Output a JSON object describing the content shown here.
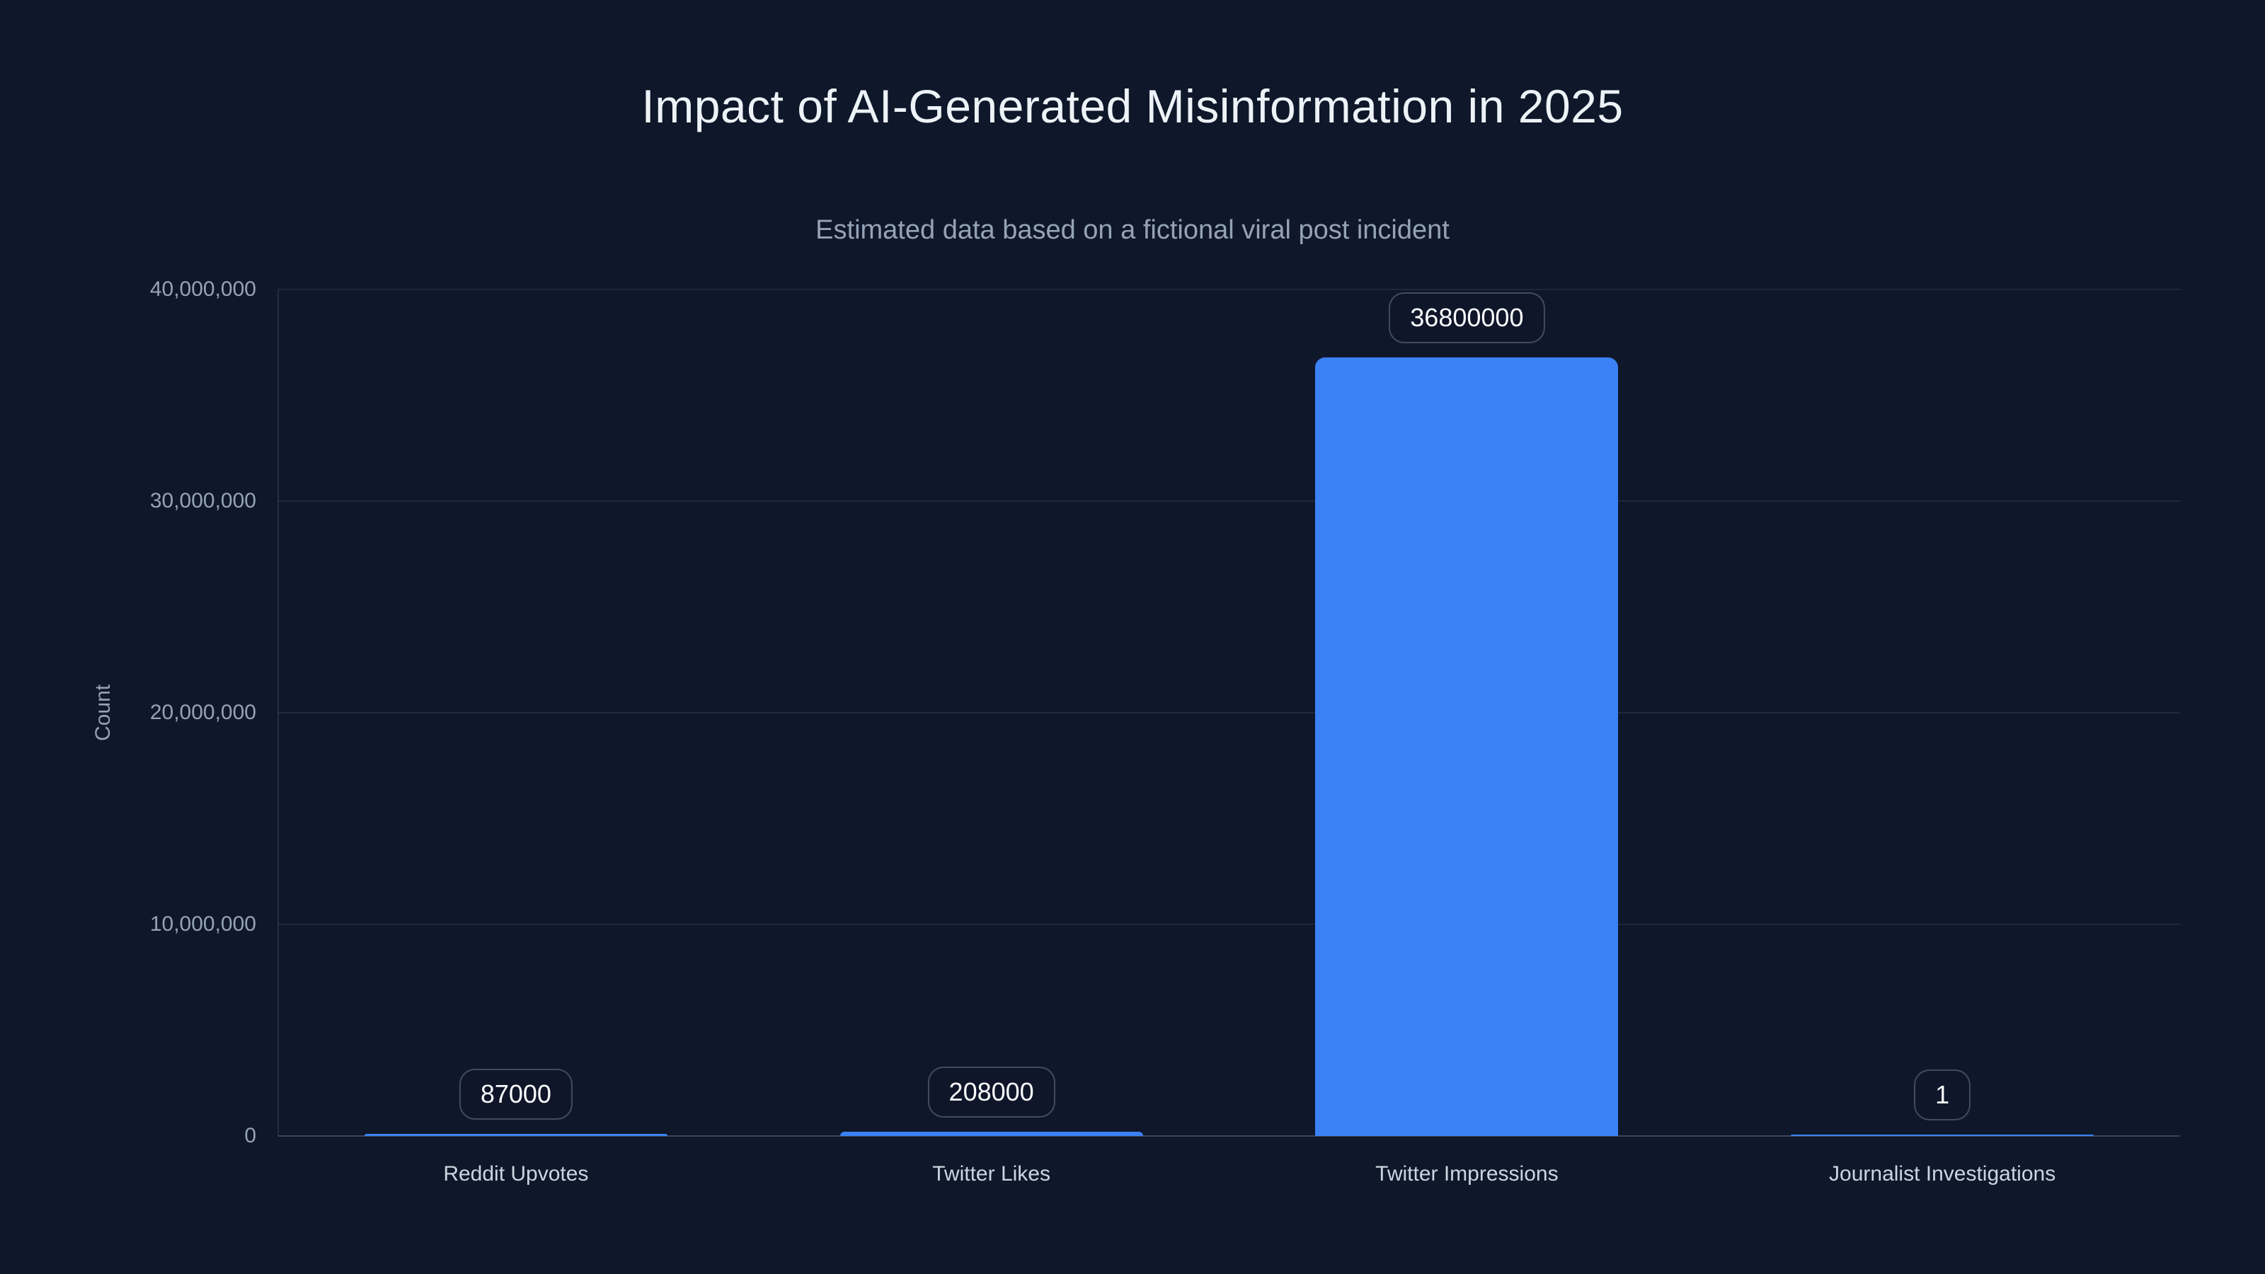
{
  "chart_data": {
    "type": "bar",
    "title": "Impact of AI-Generated Misinformation in 2025",
    "subtitle": "Estimated data based on a fictional viral post incident",
    "ylabel": "Count",
    "xlabel": "",
    "categories": [
      "Reddit Upvotes",
      "Twitter Likes",
      "Twitter Impressions",
      "Journalist Investigations"
    ],
    "values": [
      87000,
      208000,
      36800000,
      1
    ],
    "value_labels": [
      "87000",
      "208000",
      "36800000",
      "1"
    ],
    "ylim": [
      0,
      40000000
    ],
    "yticks": [
      {
        "value": 0,
        "label": "0"
      },
      {
        "value": 10000000,
        "label": "10,000,000"
      },
      {
        "value": 20000000,
        "label": "20,000,000"
      },
      {
        "value": 30000000,
        "label": "30,000,000"
      },
      {
        "value": 40000000,
        "label": "40,000,000"
      }
    ],
    "grid": true,
    "legend_position": "none",
    "bar_color": "#3b82f6",
    "background_color": "#0f172a",
    "title_color": "#edf2f7",
    "subtitle_color": "#94a3b8",
    "axis_label_color": "#94a3b8",
    "category_label_color": "#cbd5e1",
    "value_pill_text_color": "#f8fafc",
    "value_pill_border_color": "#475569"
  }
}
